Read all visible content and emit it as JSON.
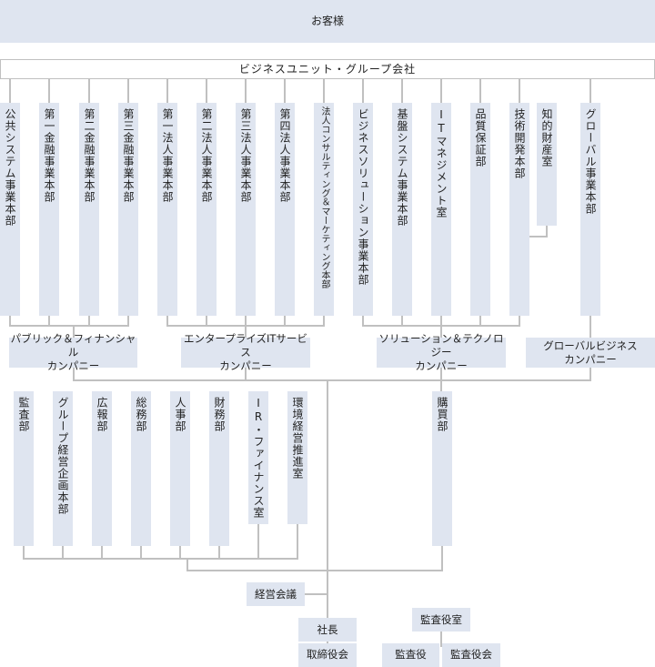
{
  "customer": "お客様",
  "business_units_header": "ビジネスユニット・グループ会社",
  "divisions": [
    "公共システム事業本部",
    "第一金融事業本部",
    "第二金融事業本部",
    "第三金融事業本部",
    "第一法人事業本部",
    "第二法人事業本部",
    "第三法人事業本部",
    "第四法人事業本部",
    "法人コンサルティング＆マーケティング本部",
    "ビジネスソリューション事業本部",
    "基盤システム事業本部",
    "ITマネジメント室",
    "品質保証部",
    "技術開発本部",
    "知的財産室",
    "グローバル事業本部"
  ],
  "companies": [
    {
      "line1": "パブリック＆フィナンシャル",
      "line2": "カンパニー"
    },
    {
      "line1": "エンタープライズITサービス",
      "line2": "カンパニー"
    },
    {
      "line1": "ソリューション＆テクノロジー",
      "line2": "カンパニー"
    },
    {
      "line1": "グローバルビジネス",
      "line2": "カンパニー"
    }
  ],
  "staff_departments": [
    "監査部",
    "グループ経営企画本部",
    "広報部",
    "総務部",
    "人事部",
    "財務部",
    "IR・ファイナンス室",
    "環境経営推進室",
    "購買部"
  ],
  "management_meeting": "経営会議",
  "president": "社長",
  "board_of_directors": "取締役会",
  "auditors_office": "監査役室",
  "auditor": "監査役",
  "board_of_auditors": "監査役会",
  "colors": {
    "box": "#dfe5f0",
    "line": "#c0c0c0"
  }
}
